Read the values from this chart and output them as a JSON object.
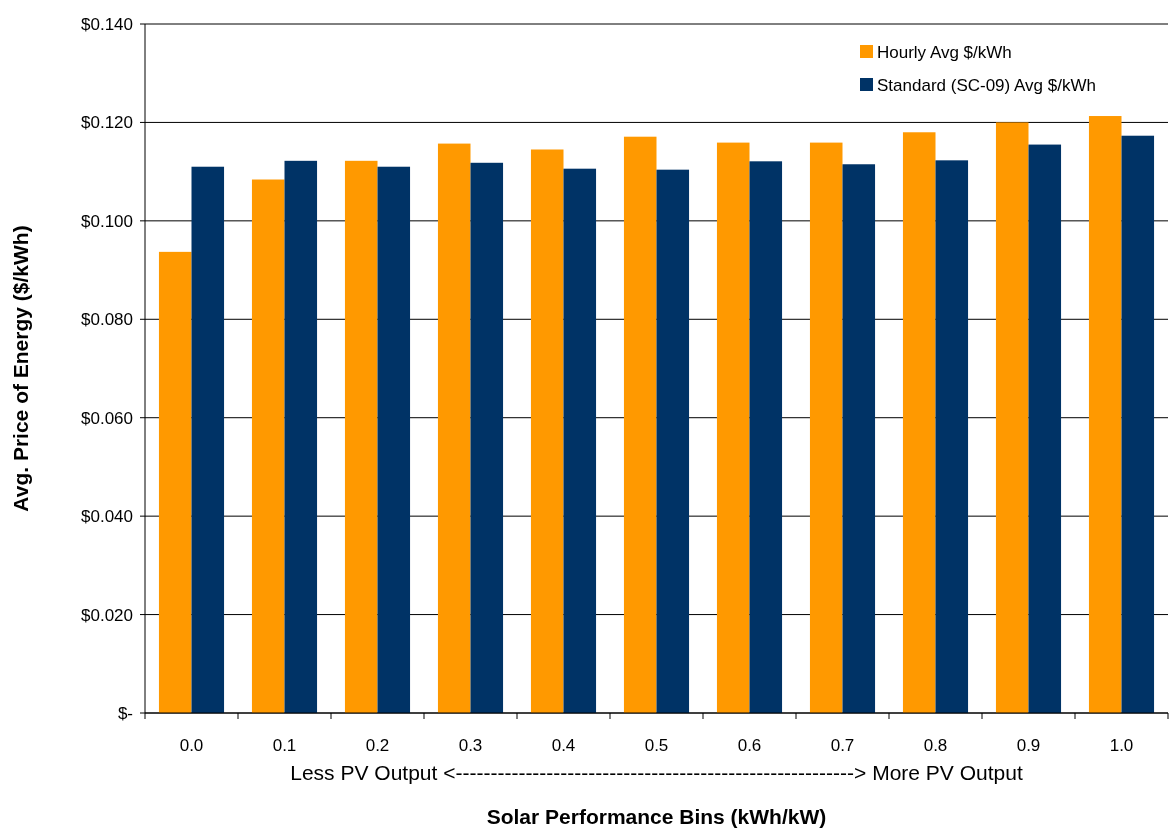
{
  "chart_data": {
    "type": "bar",
    "xlabel": "Solar Performance Bins (kWh/kW)",
    "ylabel": "Avg. Price of Energy ($/kWh)",
    "categories": [
      "0.0",
      "0.1",
      "0.2",
      "0.3",
      "0.4",
      "0.5",
      "0.6",
      "0.7",
      "0.8",
      "0.9",
      "1.0"
    ],
    "series": [
      {
        "name": "Hourly Avg $/kWh",
        "color": "#ff9900",
        "values": [
          0.0937,
          0.1084,
          0.1122,
          0.1157,
          0.1145,
          0.1171,
          0.1159,
          0.1159,
          0.118,
          0.12,
          0.1213
        ]
      },
      {
        "name": "Standard (SC-09) Avg $/kWh",
        "color": "#003366",
        "values": [
          0.111,
          0.1122,
          0.111,
          0.1118,
          0.1106,
          0.1104,
          0.1121,
          0.1115,
          0.1123,
          0.1155,
          0.1173
        ]
      }
    ],
    "ylim": [
      0,
      0.14
    ],
    "yticks": [
      {
        "value": 0,
        "label": "$-"
      },
      {
        "value": 0.02,
        "label": "$0.020"
      },
      {
        "value": 0.04,
        "label": "$0.040"
      },
      {
        "value": 0.06,
        "label": "$0.060"
      },
      {
        "value": 0.08,
        "label": "$0.080"
      },
      {
        "value": 0.1,
        "label": "$0.100"
      },
      {
        "value": 0.12,
        "label": "$0.120"
      },
      {
        "value": 0.14,
        "label": "$0.140"
      }
    ],
    "grid": "y",
    "legend": "top right",
    "annotations": [
      "Less PV Output <---------------------------------------------------------> More PV Output"
    ]
  }
}
